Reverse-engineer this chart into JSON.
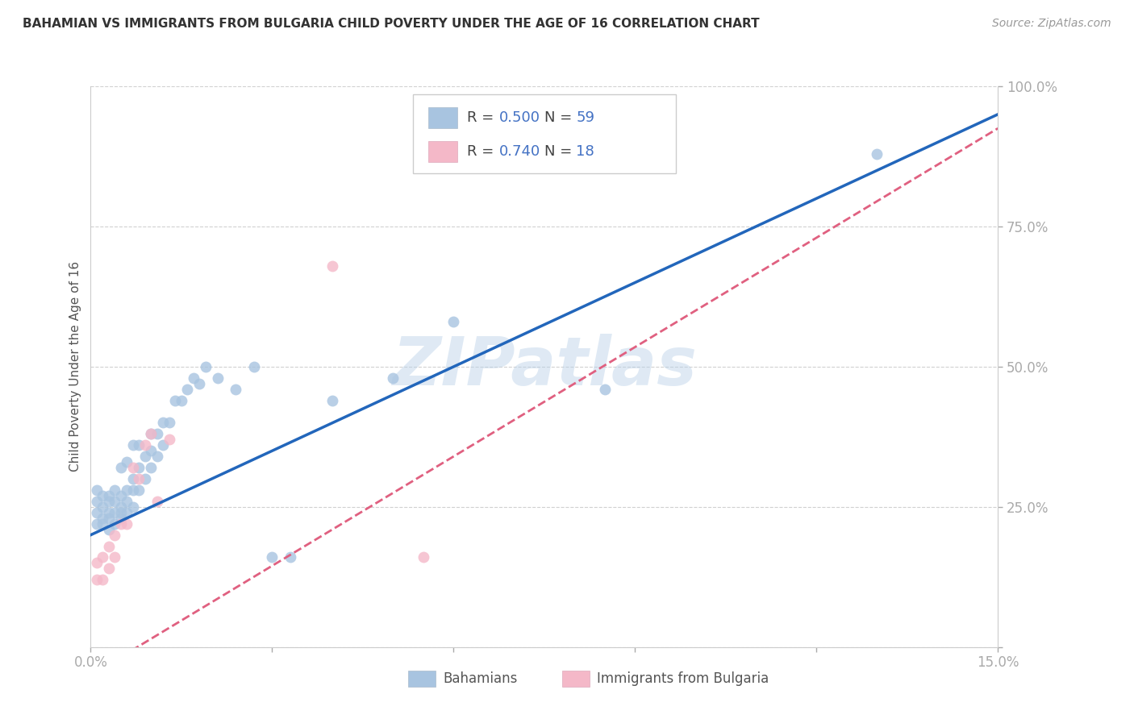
{
  "title": "BAHAMIAN VS IMMIGRANTS FROM BULGARIA CHILD POVERTY UNDER THE AGE OF 16 CORRELATION CHART",
  "source": "Source: ZipAtlas.com",
  "ylabel": "Child Poverty Under the Age of 16",
  "x_min": 0.0,
  "x_max": 0.15,
  "y_min": 0.0,
  "y_max": 1.0,
  "x_ticks": [
    0.0,
    0.03,
    0.06,
    0.09,
    0.12,
    0.15
  ],
  "x_tick_labels": [
    "0.0%",
    "",
    "",
    "",
    "",
    "15.0%"
  ],
  "y_ticks": [
    0.0,
    0.25,
    0.5,
    0.75,
    1.0
  ],
  "y_tick_labels": [
    "",
    "25.0%",
    "50.0%",
    "75.0%",
    "100.0%"
  ],
  "bahamian_R": 0.5,
  "bahamian_N": 59,
  "bulgaria_R": 0.74,
  "bulgaria_N": 18,
  "bahamian_color": "#a8c4e0",
  "bahamian_line_color": "#2266bb",
  "bulgaria_color": "#f4b8c8",
  "bulgaria_line_color": "#e06080",
  "watermark": "ZIPatlas",
  "bahamian_line_intercept": 0.2,
  "bahamian_line_slope": 5.0,
  "bulgaria_line_intercept": -0.05,
  "bulgaria_line_slope": 6.5,
  "bahamian_x": [
    0.001,
    0.001,
    0.001,
    0.001,
    0.002,
    0.002,
    0.002,
    0.002,
    0.003,
    0.003,
    0.003,
    0.003,
    0.003,
    0.004,
    0.004,
    0.004,
    0.004,
    0.005,
    0.005,
    0.005,
    0.005,
    0.005,
    0.006,
    0.006,
    0.006,
    0.006,
    0.007,
    0.007,
    0.007,
    0.007,
    0.008,
    0.008,
    0.008,
    0.009,
    0.009,
    0.01,
    0.01,
    0.01,
    0.011,
    0.011,
    0.012,
    0.012,
    0.013,
    0.014,
    0.015,
    0.016,
    0.017,
    0.018,
    0.019,
    0.021,
    0.024,
    0.027,
    0.03,
    0.033,
    0.04,
    0.05,
    0.06,
    0.085,
    0.13
  ],
  "bahamian_y": [
    0.22,
    0.24,
    0.26,
    0.28,
    0.22,
    0.23,
    0.25,
    0.27,
    0.21,
    0.23,
    0.24,
    0.26,
    0.27,
    0.22,
    0.24,
    0.26,
    0.28,
    0.23,
    0.24,
    0.25,
    0.27,
    0.32,
    0.24,
    0.26,
    0.28,
    0.33,
    0.25,
    0.28,
    0.3,
    0.36,
    0.28,
    0.32,
    0.36,
    0.3,
    0.34,
    0.32,
    0.35,
    0.38,
    0.34,
    0.38,
    0.36,
    0.4,
    0.4,
    0.44,
    0.44,
    0.46,
    0.48,
    0.47,
    0.5,
    0.48,
    0.46,
    0.5,
    0.16,
    0.16,
    0.44,
    0.48,
    0.58,
    0.46,
    0.88
  ],
  "bulgaria_x": [
    0.001,
    0.001,
    0.002,
    0.002,
    0.003,
    0.003,
    0.004,
    0.004,
    0.005,
    0.006,
    0.007,
    0.008,
    0.009,
    0.01,
    0.011,
    0.013,
    0.04,
    0.055
  ],
  "bulgaria_y": [
    0.12,
    0.15,
    0.12,
    0.16,
    0.14,
    0.18,
    0.16,
    0.2,
    0.22,
    0.22,
    0.32,
    0.3,
    0.36,
    0.38,
    0.26,
    0.37,
    0.68,
    0.16
  ]
}
